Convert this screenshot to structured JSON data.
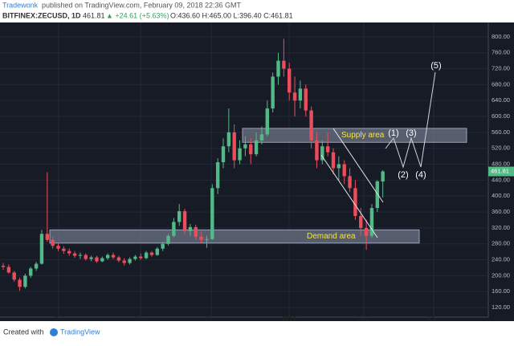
{
  "header": {
    "author": "Tradewonk",
    "published": "published on TradingView.com, February 09, 2018 22:36 GMT",
    "symbol": "BITFINEX:ZECUSD, 1D",
    "price": "461.81",
    "change": "▲ +24.61 (+5.63%)",
    "ohlc": "O:436.60 H:465.00 L:396.40 C:461.81"
  },
  "footer": {
    "created": "Created with",
    "brand": "TradingView"
  },
  "chart_data": {
    "type": "candlestick",
    "xtick_labels": [
      "Oct",
      "Nov",
      "Dec",
      "2018",
      "Feb",
      "Mar"
    ],
    "open": [
      225,
      222,
      208,
      190,
      172,
      200,
      218,
      230,
      305,
      290,
      275,
      268,
      262,
      256,
      250,
      252,
      242,
      246,
      236,
      244,
      252,
      246,
      238,
      232,
      242,
      248,
      244,
      258,
      252,
      268,
      280,
      300,
      335,
      362,
      312,
      322,
      298,
      290,
      292,
      420,
      485,
      525,
      560,
      490,
      520,
      530,
      505,
      540,
      555,
      620,
      700,
      740,
      720,
      660,
      640,
      670,
      615,
      540,
      490,
      525,
      510,
      470,
      480,
      450,
      420,
      350,
      320,
      300,
      370,
      436.6
    ],
    "high": [
      232,
      228,
      212,
      195,
      205,
      222,
      235,
      315,
      460,
      298,
      282,
      274,
      268,
      262,
      258,
      256,
      250,
      250,
      248,
      256,
      258,
      250,
      244,
      246,
      252,
      256,
      262,
      262,
      272,
      285,
      305,
      345,
      380,
      368,
      330,
      328,
      310,
      300,
      430,
      495,
      545,
      620,
      580,
      540,
      550,
      545,
      560,
      575,
      640,
      710,
      760,
      795,
      735,
      700,
      690,
      680,
      625,
      560,
      540,
      560,
      520,
      500,
      490,
      470,
      440,
      370,
      340,
      380,
      440,
      465
    ],
    "low": [
      215,
      205,
      185,
      162,
      168,
      195,
      212,
      228,
      285,
      268,
      262,
      255,
      250,
      245,
      242,
      238,
      236,
      232,
      234,
      240,
      242,
      234,
      226,
      228,
      238,
      240,
      242,
      248,
      250,
      262,
      276,
      296,
      325,
      305,
      300,
      290,
      282,
      270,
      290,
      405,
      470,
      510,
      470,
      480,
      500,
      480,
      500,
      530,
      550,
      610,
      680,
      700,
      640,
      600,
      620,
      600,
      520,
      470,
      480,
      500,
      455,
      440,
      430,
      410,
      340,
      300,
      265,
      295,
      360,
      396.4
    ],
    "close": [
      222,
      208,
      190,
      172,
      200,
      218,
      230,
      305,
      290,
      275,
      268,
      262,
      256,
      250,
      252,
      242,
      246,
      236,
      244,
      252,
      246,
      238,
      232,
      242,
      248,
      244,
      258,
      252,
      268,
      280,
      300,
      335,
      362,
      312,
      322,
      298,
      290,
      292,
      420,
      485,
      525,
      560,
      490,
      520,
      530,
      505,
      540,
      555,
      620,
      700,
      740,
      720,
      660,
      640,
      670,
      615,
      540,
      490,
      525,
      510,
      470,
      480,
      450,
      420,
      350,
      320,
      300,
      370,
      437,
      461.81
    ],
    "up_color": "#53b987",
    "down_color": "#eb4d5c",
    "ylim": [
      96,
      836
    ],
    "yticks": [
      {
        "value": 120,
        "label": "120.00"
      },
      {
        "value": 160,
        "label": "160.00"
      },
      {
        "value": 200,
        "label": "200.00"
      },
      {
        "value": 240,
        "label": "240.00"
      },
      {
        "value": 280,
        "label": "280.00"
      },
      {
        "value": 320,
        "label": "320.00"
      },
      {
        "value": 360,
        "label": "360.00"
      },
      {
        "value": 400,
        "label": "400.00"
      },
      {
        "value": 440,
        "label": "440.00"
      },
      {
        "value": 480,
        "label": "480.00"
      },
      {
        "value": 520,
        "label": "520.00"
      },
      {
        "value": 560,
        "label": "560.00"
      },
      {
        "value": 600,
        "label": "600.00"
      },
      {
        "value": 640,
        "label": "640.00"
      },
      {
        "value": 680,
        "label": "680.00"
      },
      {
        "value": 720,
        "label": "720.00"
      },
      {
        "value": 760,
        "label": "760.00"
      },
      {
        "value": 800,
        "label": "800.00"
      }
    ],
    "grid": true,
    "last_price": {
      "value": 461.81,
      "label": "461.81"
    },
    "zones": [
      {
        "name": "Supply area",
        "range": [
          535,
          570
        ]
      },
      {
        "name": "Demand area",
        "range": [
          282,
          315
        ]
      }
    ],
    "waves": [
      "(1)",
      "(2)",
      "(3)",
      "(4)",
      "(5)"
    ]
  }
}
